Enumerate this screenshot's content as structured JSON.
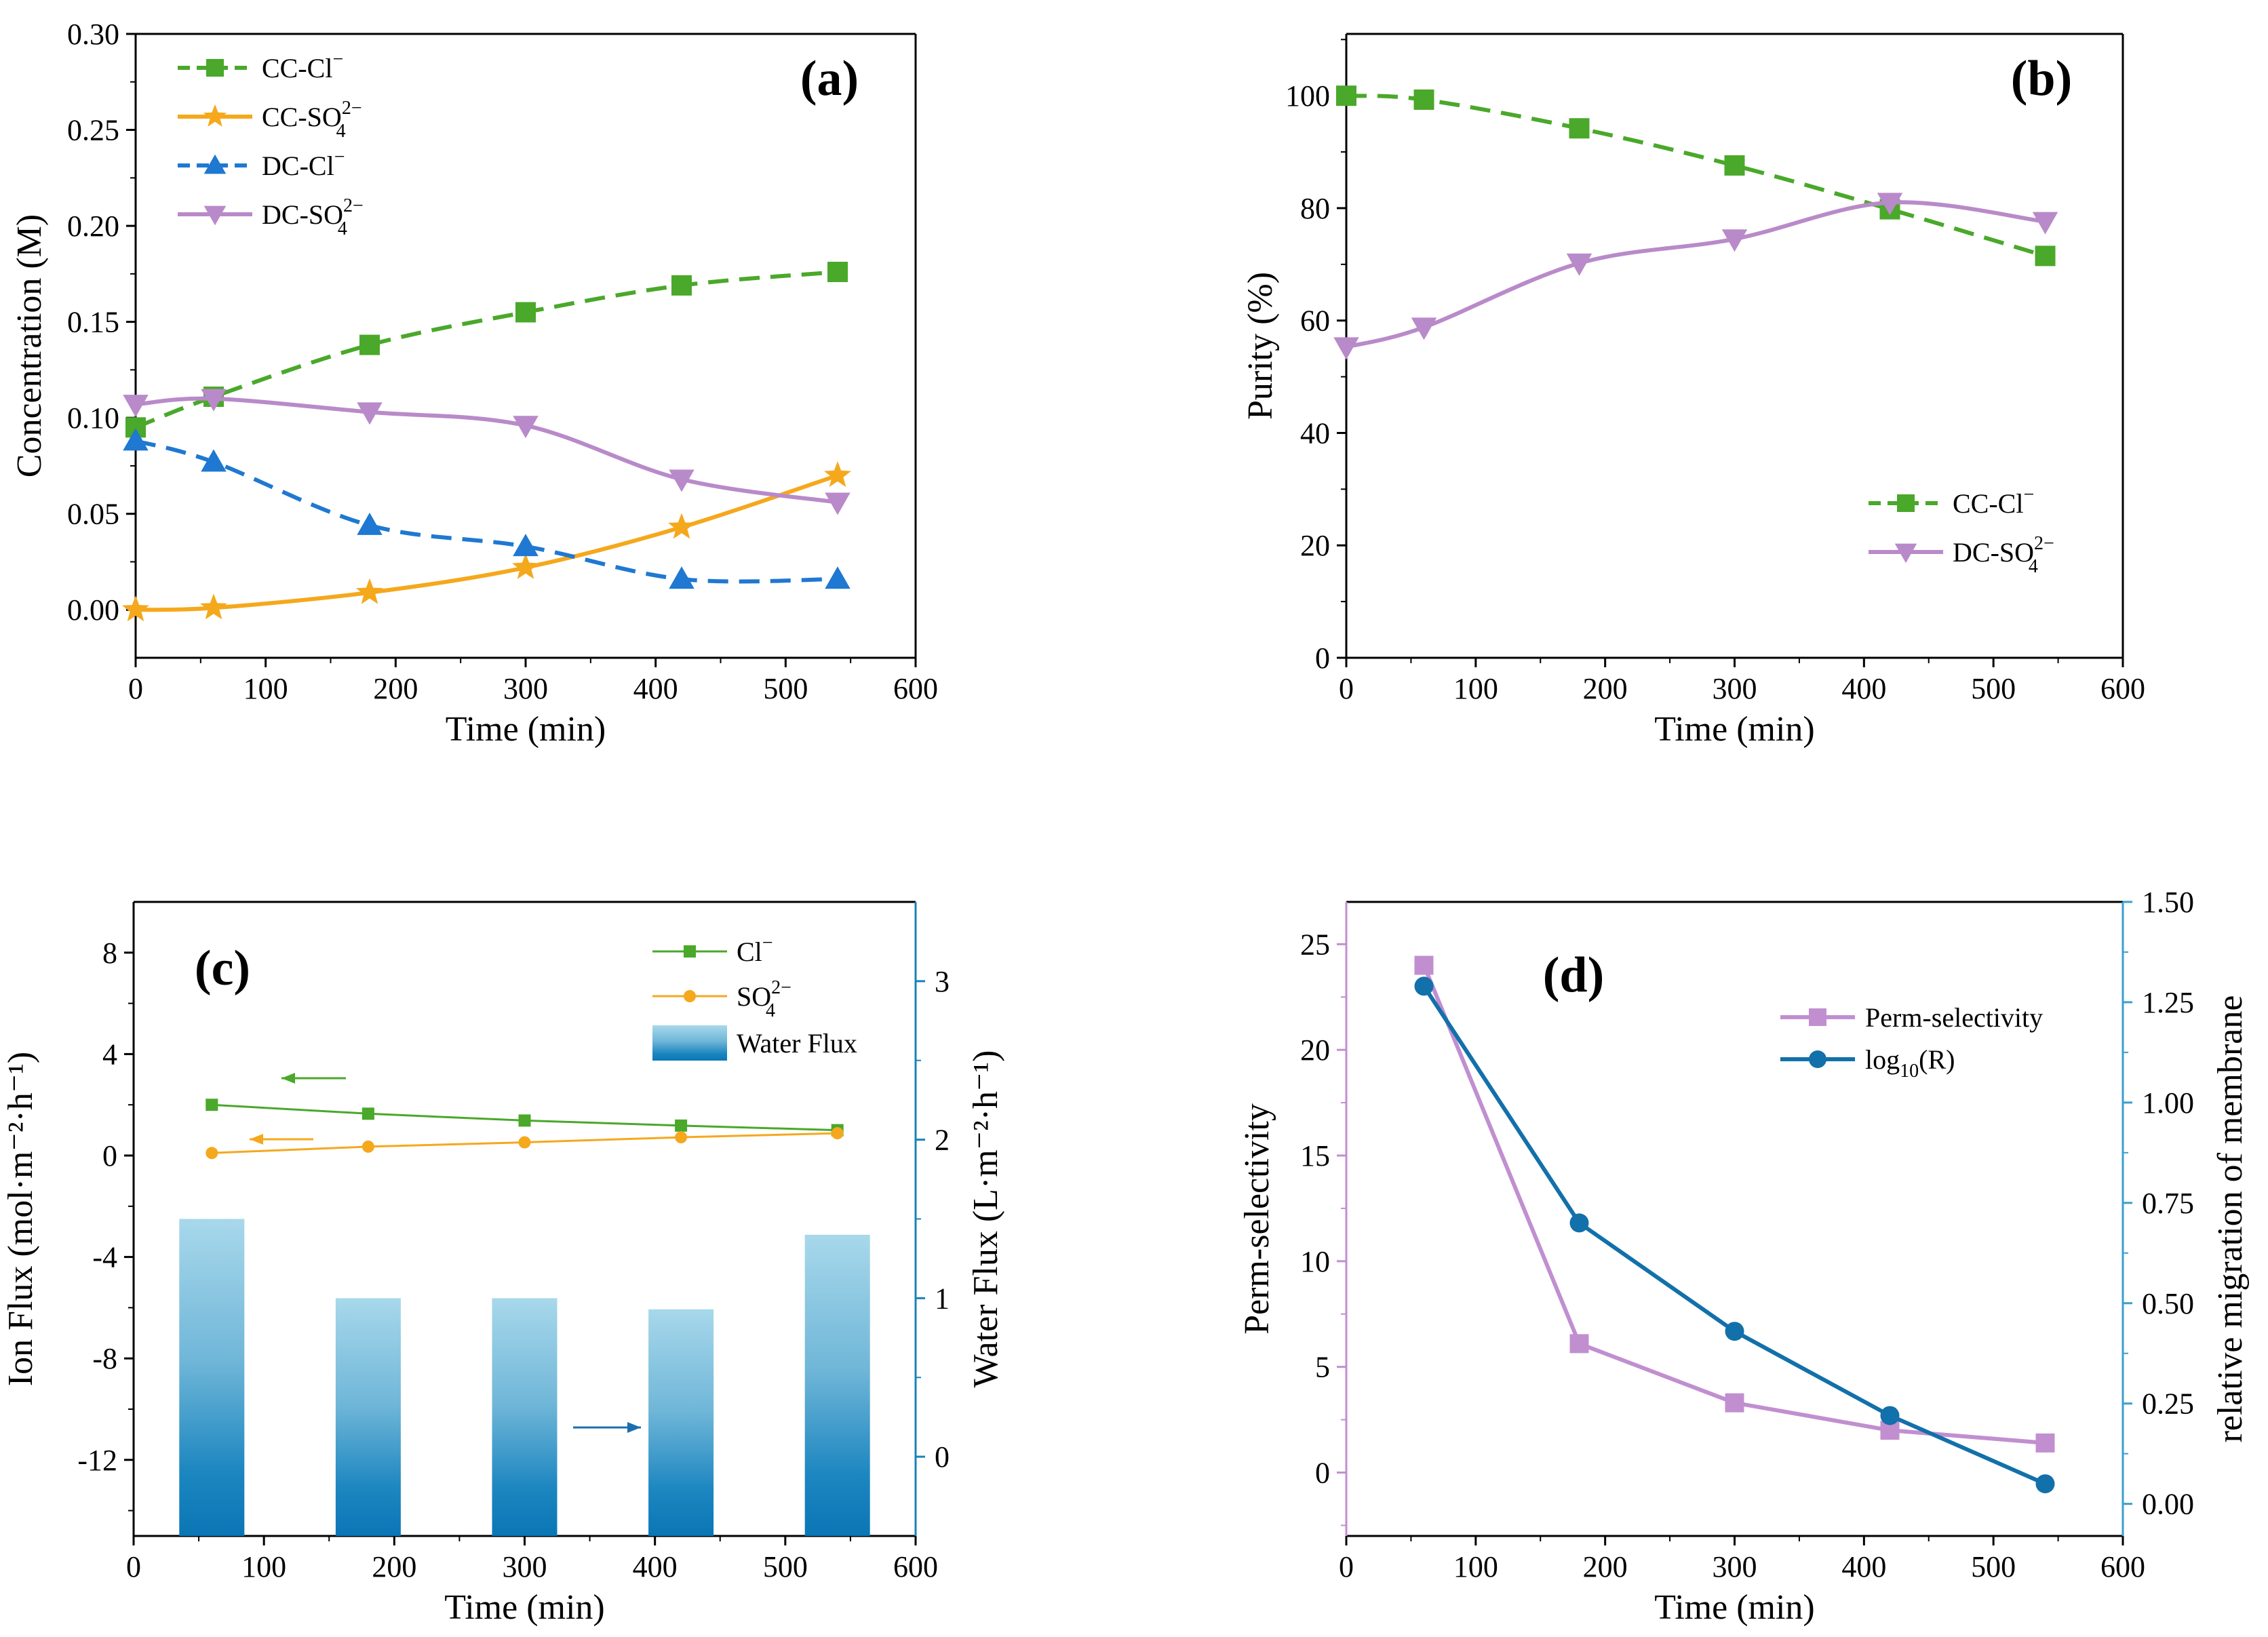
{
  "chart_data": [
    {
      "panel": "a",
      "type": "line",
      "label": "(a)",
      "xlabel": "Time (min)",
      "ylabel": "Concentration (M)",
      "xlim": [
        0,
        600
      ],
      "ylim": [
        -0.025,
        0.3
      ],
      "xticks": [
        "0",
        "100",
        "200",
        "300",
        "400",
        "500",
        "600"
      ],
      "yticks": [
        "0.00",
        "0.05",
        "0.10",
        "0.15",
        "0.20",
        "0.25",
        "0.30"
      ],
      "ytick_values": [
        0,
        0.05,
        0.1,
        0.15,
        0.2,
        0.25,
        0.3
      ],
      "legend_position": "top-left",
      "series": [
        {
          "name": "CC-Cl",
          "sup": "−",
          "sub": "",
          "color": "#4aa82a",
          "dash": "dashed",
          "marker": "square",
          "x": [
            0,
            60,
            180,
            300,
            420,
            540
          ],
          "y": [
            0.095,
            0.111,
            0.138,
            0.155,
            0.169,
            0.176
          ]
        },
        {
          "name": "CC-SO",
          "sup": "2−",
          "sub": "4",
          "color": "#f5a81c",
          "dash": "solid",
          "marker": "star",
          "x": [
            0,
            60,
            180,
            300,
            420,
            540
          ],
          "y": [
            0.0,
            0.001,
            0.009,
            0.022,
            0.043,
            0.07
          ]
        },
        {
          "name": "DC-Cl",
          "sup": "−",
          "sub": "",
          "color": "#1f78d1",
          "dash": "dashed",
          "marker": "triangle-up",
          "x": [
            0,
            60,
            180,
            300,
            420,
            540
          ],
          "y": [
            0.088,
            0.077,
            0.044,
            0.033,
            0.016,
            0.016
          ]
        },
        {
          "name": "DC-SO",
          "sup": "2−",
          "sub": "4",
          "color": "#b98ac9",
          "dash": "solid",
          "marker": "triangle-down",
          "x": [
            0,
            60,
            180,
            300,
            420,
            540
          ],
          "y": [
            0.107,
            0.11,
            0.103,
            0.096,
            0.068,
            0.056
          ]
        }
      ]
    },
    {
      "panel": "b",
      "type": "line",
      "label": "(b)",
      "xlabel": "Time (min)",
      "ylabel": "Purity (%)",
      "xlim": [
        0,
        600
      ],
      "ylim": [
        0,
        111
      ],
      "xticks": [
        "0",
        "100",
        "200",
        "300",
        "400",
        "500",
        "600"
      ],
      "yticks": [
        "0",
        "20",
        "40",
        "60",
        "80",
        "100"
      ],
      "ytick_values": [
        0,
        20,
        40,
        60,
        80,
        100
      ],
      "legend_position": "bottom-right",
      "series": [
        {
          "name": "CC-Cl",
          "sup": "−",
          "sub": "",
          "color": "#4aa82a",
          "dash": "dashed",
          "marker": "square",
          "x": [
            0,
            60,
            180,
            300,
            420,
            540
          ],
          "y": [
            100,
            99.3,
            94.2,
            87.6,
            79.8,
            71.5
          ]
        },
        {
          "name": "DC-SO",
          "sup": "2−",
          "sub": "4",
          "color": "#b98ac9",
          "dash": "solid",
          "marker": "triangle-down",
          "x": [
            0,
            60,
            180,
            300,
            420,
            540
          ],
          "y": [
            55.3,
            58.8,
            70.2,
            74.5,
            81.0,
            77.6
          ]
        }
      ]
    },
    {
      "panel": "c",
      "type": "bar+line",
      "label": "(c)",
      "xlabel": "Time (min)",
      "ylabel": "Ion Flux (mol·m⁻²·h⁻¹)",
      "y2label": "Water Flux (L·m⁻²·h⁻¹)",
      "xlim": [
        0,
        600
      ],
      "ylim": [
        -15,
        10
      ],
      "y2lim": [
        -0.5,
        3.5
      ],
      "xticks": [
        "0",
        "100",
        "200",
        "300",
        "400",
        "500",
        "600"
      ],
      "yticks": [
        "-12",
        "-8",
        "-4",
        "0",
        "4",
        "8"
      ],
      "ytick_values": [
        -12,
        -8,
        -4,
        0,
        4,
        8
      ],
      "y2ticks": [
        "0",
        "1",
        "2",
        "3"
      ],
      "y2tick_values": [
        0,
        1,
        2,
        3
      ],
      "legend_position": "top-right",
      "water_flux": {
        "name": "Water Flux",
        "x": [
          60,
          180,
          300,
          420,
          540
        ],
        "values": [
          1.5,
          1.0,
          1.0,
          0.93,
          1.4
        ]
      },
      "series": [
        {
          "name": "Cl",
          "sup": "−",
          "sub": "",
          "color": "#4aa82a",
          "marker": "square",
          "x": [
            60,
            180,
            300,
            420,
            540
          ],
          "y": [
            2.0,
            1.65,
            1.38,
            1.18,
            1.0
          ]
        },
        {
          "name": "SO",
          "sup": "2−",
          "sub": "4",
          "color": "#f5a81c",
          "marker": "circle",
          "x": [
            60,
            180,
            300,
            420,
            540
          ],
          "y": [
            0.1,
            0.35,
            0.52,
            0.72,
            0.88
          ]
        }
      ]
    },
    {
      "panel": "d",
      "type": "line",
      "label": "(d)",
      "xlabel": "Time (min)",
      "ylabel": "Perm-selectivity",
      "y2label": "relative migration of membrane",
      "xlim": [
        0,
        600
      ],
      "ylim": [
        -3,
        27
      ],
      "y2lim": [
        -0.08,
        1.5
      ],
      "xticks": [
        "0",
        "100",
        "200",
        "300",
        "400",
        "500",
        "600"
      ],
      "yticks": [
        "0",
        "5",
        "10",
        "15",
        "20",
        "25"
      ],
      "ytick_values": [
        0,
        5,
        10,
        15,
        20,
        25
      ],
      "y2ticks": [
        "0.00",
        "0.25",
        "0.50",
        "0.75",
        "1.00",
        "1.25",
        "1.50"
      ],
      "y2tick_values": [
        0,
        0.25,
        0.5,
        0.75,
        1.0,
        1.25,
        1.5
      ],
      "legend_position": "top-right",
      "series": [
        {
          "name": "Perm-selectivity",
          "axis": "left",
          "color": "#c18fd0",
          "marker": "square",
          "x": [
            60,
            180,
            300,
            420,
            540
          ],
          "y": [
            24.0,
            6.1,
            3.3,
            2.0,
            1.4
          ]
        },
        {
          "name": "log",
          "sub": "10",
          "suffix": "(R)",
          "axis": "right",
          "color": "#1270aa",
          "marker": "circle",
          "x": [
            60,
            180,
            300,
            420,
            540
          ],
          "y": [
            1.29,
            0.7,
            0.43,
            0.22,
            0.05
          ]
        }
      ]
    }
  ]
}
